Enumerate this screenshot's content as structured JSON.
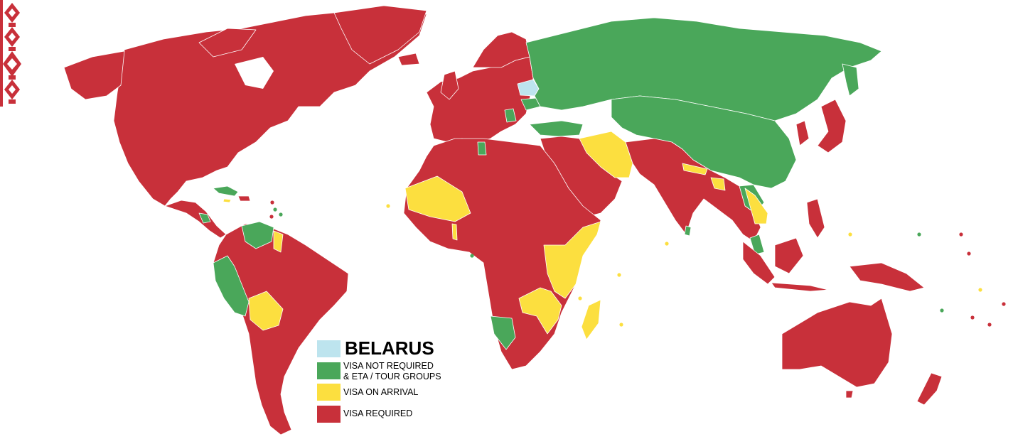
{
  "map": {
    "subject": "BELARUS",
    "colors": {
      "home": "#bde4ee",
      "visa_not_required": "#4aa75a",
      "visa_on_arrival": "#fcdf3f",
      "visa_required": "#c8303a",
      "ornament": "#c8303a"
    },
    "legend": {
      "title": "BELARUS",
      "items": [
        {
          "key": "visa_not_required",
          "label_line1": "VISA NOT REQUIRED",
          "label_line2": "& ETA / TOUR GROUPS"
        },
        {
          "key": "visa_on_arrival",
          "label_line1": "VISA ON ARRIVAL"
        },
        {
          "key": "visa_required",
          "label_line1": "VISA REQUIRED"
        }
      ]
    }
  }
}
